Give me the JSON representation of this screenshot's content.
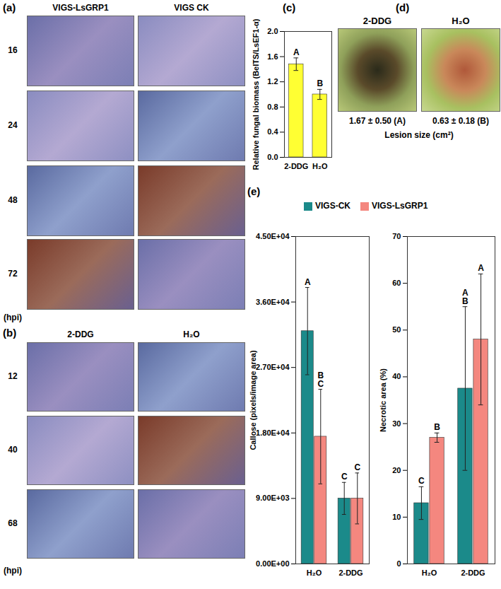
{
  "image_panels": {
    "a": {
      "panel": "(a)",
      "columns": [
        "VIGS-LsGRP1",
        "VIGS CK"
      ],
      "rows": [
        "16",
        "24",
        "48",
        "72"
      ],
      "unit": "(hpi)"
    },
    "b": {
      "panel": "(b)",
      "columns": [
        "2-DDG",
        "H₂O"
      ],
      "rows": [
        "12",
        "40",
        "68"
      ],
      "unit": "(hpi)"
    },
    "d": {
      "panel": "(d)",
      "columns": [
        "2-DDG",
        "H₂O"
      ],
      "captions": [
        "1.67 ± 0.50 (A)",
        "0.63 ± 0.18 (B)"
      ],
      "caption_title": "Lesion size (cm²)"
    }
  },
  "chart_data": [
    {
      "type": "bar",
      "title": "(c)",
      "y_label": "Relative fungal biomass (BeITS/LsEF1-α)",
      "categories": [
        "2-DDG",
        "H₂O"
      ],
      "values": [
        1.48,
        1.0
      ],
      "errors": [
        0.1,
        0.08
      ],
      "annotations": [
        "A",
        "B"
      ],
      "color": "#ffff33",
      "ylim": [
        0,
        2
      ],
      "yticks": [
        {
          "value": 0,
          "label": "0.0"
        },
        {
          "value": 0.4,
          "label": "0.4"
        },
        {
          "value": 0.8,
          "label": "0.8"
        },
        {
          "value": 1.2,
          "label": "1.2"
        },
        {
          "value": 1.6,
          "label": "1.6"
        },
        {
          "value": 2,
          "label": "2.0"
        }
      ]
    },
    {
      "type": "bar",
      "title": "(e)",
      "y_label": "Callose (pixels/image area)",
      "legend": "top",
      "categories": [
        "H₂O",
        "2-DDG"
      ],
      "series": [
        {
          "name": "VIGS-CK",
          "color": "#1b8a8a",
          "values": [
            32000,
            9000
          ],
          "errors": [
            6000,
            2200
          ],
          "annotations": [
            "A",
            "C"
          ]
        },
        {
          "name": "VIGS-LsGRP1",
          "color": "#f4877f",
          "values": [
            17500,
            9000
          ],
          "errors": [
            6500,
            3500
          ],
          "annotations": [
            "B\nC",
            "C"
          ]
        }
      ],
      "ylim": [
        0,
        45000
      ],
      "yticks": [
        {
          "value": 0,
          "label": "0.00E+00"
        },
        {
          "value": 9000,
          "label": "9.00E+03"
        },
        {
          "value": 18000,
          "label": "1.80E+04"
        },
        {
          "value": 27000,
          "label": "2.70E+04"
        },
        {
          "value": 36000,
          "label": "3.60E+04"
        },
        {
          "value": 45000,
          "label": "4.50E+04"
        }
      ]
    },
    {
      "type": "bar",
      "y_label": "Necrotic area (%)",
      "categories": [
        "H₂O",
        "2-DDG"
      ],
      "series": [
        {
          "name": "VIGS-CK",
          "color": "#1b8a8a",
          "values": [
            13,
            37.5
          ],
          "errors": [
            3.5,
            17.5
          ],
          "annotations": [
            "C",
            "A\nB"
          ]
        },
        {
          "name": "VIGS-LsGRP1",
          "color": "#f4877f",
          "values": [
            27,
            48
          ],
          "errors": [
            1,
            14
          ],
          "annotations": [
            "B",
            "A"
          ]
        }
      ],
      "ylim": [
        0,
        70
      ],
      "yticks": [
        0,
        10,
        20,
        30,
        40,
        50,
        60,
        70
      ]
    }
  ]
}
